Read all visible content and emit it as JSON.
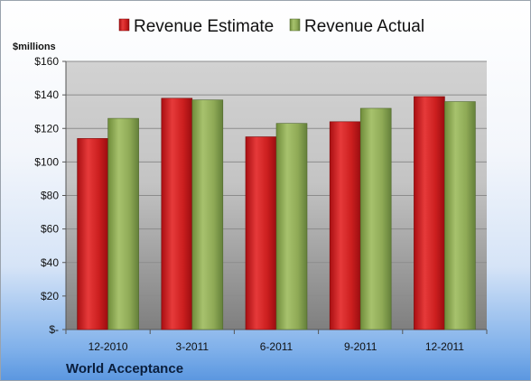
{
  "chart_data": {
    "type": "bar",
    "ylabel": "$millions",
    "footer": "World Acceptance",
    "categories": [
      "12-2010",
      "3-2011",
      "6-2011",
      "9-2011",
      "12-2011"
    ],
    "series": [
      {
        "name": "Revenue Estimate",
        "values": [
          114,
          138,
          115,
          124,
          139
        ],
        "color": "#cc1f1f"
      },
      {
        "name": "Revenue Actual",
        "values": [
          126,
          137,
          123,
          132,
          136
        ],
        "color": "#8faa56"
      }
    ],
    "ylim": [
      0,
      160
    ],
    "yticks": [
      0,
      20,
      40,
      60,
      80,
      100,
      120,
      140,
      160
    ],
    "ytick_labels": [
      "$-",
      "$20",
      "$40",
      "$60",
      "$80",
      "$100",
      "$120",
      "$140",
      "$160"
    ],
    "grid": true,
    "legend_position": "top"
  }
}
